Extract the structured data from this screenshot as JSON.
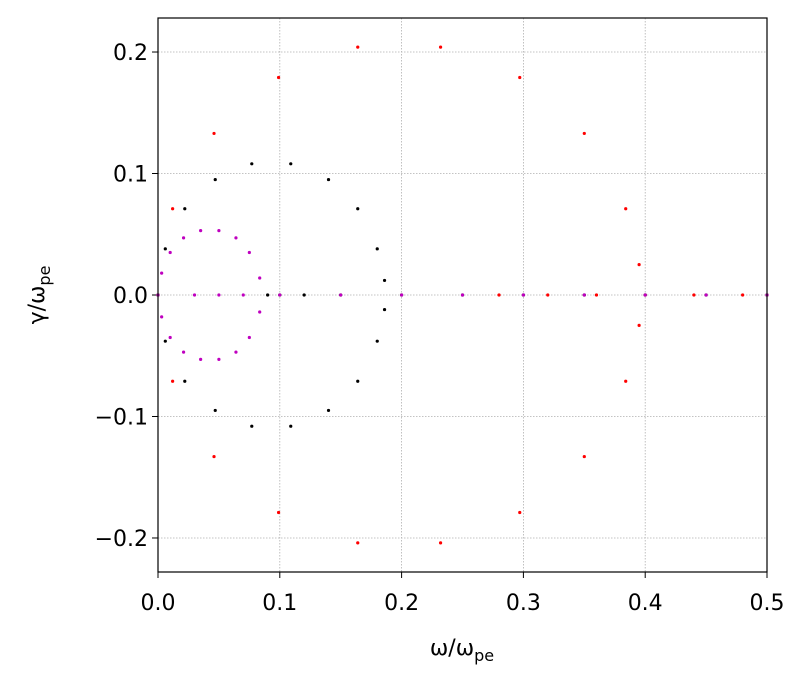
{
  "chart_data": {
    "type": "scatter",
    "xlabel": {
      "text": "ω/ω",
      "subscript": "pe"
    },
    "ylabel": {
      "text": "γ/ω",
      "subscript": "pe"
    },
    "xlim": [
      0,
      0.5
    ],
    "ylim": [
      -0.228,
      0.228
    ],
    "xticks": [
      {
        "value": 0,
        "label": "0.0"
      },
      0.1,
      0.2,
      0.3,
      0.4,
      0.5
    ],
    "yticks": [
      {
        "value": -0.2,
        "label": "−0.2"
      },
      {
        "value": -0.1,
        "label": "−0.1"
      },
      {
        "value": 0,
        "label": "0.0"
      },
      0.1,
      0.2
    ],
    "grid": true,
    "series": [
      {
        "color": "#ff0000",
        "x": [
          0.395,
          0.384,
          0.35,
          0.297,
          0.232,
          0.164,
          0.099,
          0.046,
          0.012,
          0,
          0.012,
          0.046,
          0.099,
          0.164,
          0.232,
          0.297,
          0.35,
          0.384,
          0.395,
          0.28,
          0.32,
          0.36,
          0.4,
          0.44,
          0.48,
          0.5
        ],
        "y": [
          0.025,
          0.071,
          0.133,
          0.179,
          0.204,
          0.204,
          0.179,
          0.133,
          0.071,
          0,
          -0.071,
          -0.133,
          -0.179,
          -0.204,
          -0.204,
          -0.179,
          -0.133,
          -0.071,
          -0.025,
          0,
          0,
          0,
          0,
          0,
          0,
          0
        ]
      },
      {
        "color": "#000000",
        "x": [
          0.186,
          0.18,
          0.164,
          0.14,
          0.109,
          0.077,
          0.047,
          0.022,
          0.006,
          0,
          0.006,
          0.022,
          0.047,
          0.077,
          0.109,
          0.14,
          0.164,
          0.18,
          0.186,
          0.09,
          0.1,
          0.12,
          0.15,
          0.2,
          0.25,
          0.3,
          0.35,
          0.4,
          0.45,
          0.5
        ],
        "y": [
          0.012,
          0.038,
          0.071,
          0.095,
          0.108,
          0.108,
          0.095,
          0.071,
          0.038,
          0,
          -0.038,
          -0.071,
          -0.095,
          -0.108,
          -0.108,
          -0.095,
          -0.071,
          -0.038,
          -0.012,
          0,
          0,
          0,
          0,
          0,
          0,
          0,
          0,
          0,
          0,
          0
        ]
      },
      {
        "color": "#bf00bf",
        "x": [
          0.0835,
          0.075,
          0.064,
          0.05,
          0.035,
          0.021,
          0.01,
          0.003,
          0,
          0.003,
          0.01,
          0.021,
          0.035,
          0.05,
          0.064,
          0.075,
          0.0835,
          0.03,
          0.05,
          0.07,
          0.1,
          0.15,
          0.2,
          0.25,
          0.3,
          0.35,
          0.4,
          0.45,
          0.5
        ],
        "y": [
          0.014,
          0.035,
          0.047,
          0.053,
          0.053,
          0.047,
          0.035,
          0.018,
          0,
          -0.018,
          -0.035,
          -0.047,
          -0.053,
          -0.053,
          -0.047,
          -0.035,
          -0.014,
          0,
          0,
          0,
          0,
          0,
          0,
          0,
          0,
          0,
          0,
          0,
          0
        ]
      }
    ]
  }
}
